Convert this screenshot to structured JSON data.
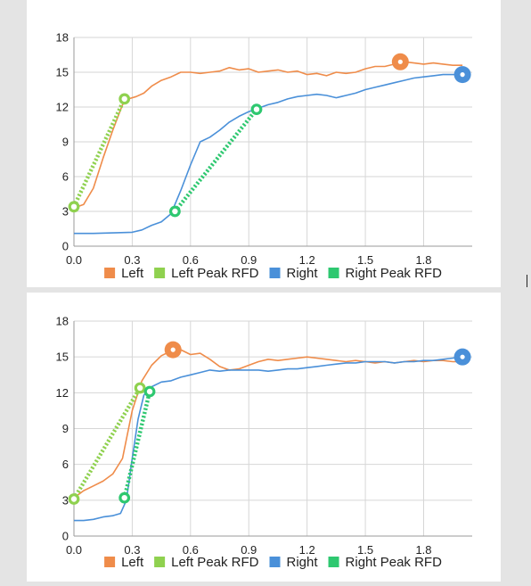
{
  "chart_data": [
    {
      "type": "line",
      "title": "",
      "xlabel": "",
      "ylabel": "",
      "xlim": [
        0,
        2.05
      ],
      "ylim": [
        0,
        18
      ],
      "x_ticks": [
        0.0,
        0.3,
        0.6,
        0.9,
        1.2,
        1.5,
        1.8
      ],
      "x_tick_labels": [
        "0.0",
        "0.3",
        "0.6",
        "0.9",
        "1.2",
        "1.5",
        "1.8"
      ],
      "y_ticks": [
        0,
        3,
        6,
        9,
        12,
        15,
        18
      ],
      "y_tick_labels": [
        "0",
        "3",
        "6",
        "9",
        "12",
        "15",
        "18"
      ],
      "grid": true,
      "legend_position": "bottom",
      "series": [
        {
          "name": "Left",
          "color": "#ef8c4a",
          "style": "solid",
          "x": [
            0.0,
            0.05,
            0.1,
            0.15,
            0.2,
            0.25,
            0.28,
            0.32,
            0.36,
            0.4,
            0.45,
            0.5,
            0.55,
            0.6,
            0.65,
            0.7,
            0.75,
            0.8,
            0.85,
            0.9,
            0.95,
            1.0,
            1.05,
            1.1,
            1.15,
            1.2,
            1.25,
            1.3,
            1.35,
            1.4,
            1.45,
            1.5,
            1.55,
            1.6,
            1.65,
            1.7,
            1.75,
            1.8,
            1.85,
            1.9,
            1.95,
            2.0
          ],
          "y": [
            3.3,
            3.6,
            5.0,
            7.6,
            10.0,
            12.2,
            12.7,
            12.9,
            13.2,
            13.8,
            14.3,
            14.6,
            15.0,
            15.0,
            14.9,
            15.0,
            15.1,
            15.4,
            15.2,
            15.3,
            15.0,
            15.1,
            15.2,
            15.0,
            15.1,
            14.8,
            14.9,
            14.7,
            15.0,
            14.9,
            15.0,
            15.3,
            15.5,
            15.5,
            15.7,
            15.9,
            15.8,
            15.7,
            15.8,
            15.7,
            15.6,
            15.6
          ]
        },
        {
          "name": "Left Peak RFD",
          "color": "#8fd14f",
          "style": "dotted",
          "x": [
            0.0,
            0.26
          ],
          "y": [
            3.4,
            12.7
          ]
        },
        {
          "name": "Right",
          "color": "#4a90d9",
          "style": "solid",
          "x": [
            0.0,
            0.1,
            0.2,
            0.3,
            0.35,
            0.4,
            0.45,
            0.5,
            0.55,
            0.6,
            0.65,
            0.7,
            0.75,
            0.8,
            0.85,
            0.9,
            0.95,
            1.0,
            1.05,
            1.1,
            1.15,
            1.2,
            1.25,
            1.3,
            1.35,
            1.4,
            1.45,
            1.5,
            1.55,
            1.6,
            1.65,
            1.7,
            1.75,
            1.8,
            1.85,
            1.9,
            1.95,
            2.0
          ],
          "y": [
            1.1,
            1.1,
            1.15,
            1.2,
            1.4,
            1.8,
            2.1,
            2.8,
            4.8,
            7.0,
            9.0,
            9.4,
            10.0,
            10.7,
            11.2,
            11.6,
            11.9,
            12.2,
            12.4,
            12.7,
            12.9,
            13.0,
            13.1,
            13.0,
            12.8,
            13.0,
            13.2,
            13.5,
            13.7,
            13.9,
            14.1,
            14.3,
            14.5,
            14.6,
            14.7,
            14.8,
            14.8,
            14.8
          ]
        },
        {
          "name": "Right Peak RFD",
          "color": "#2ec870",
          "style": "dotted",
          "x": [
            0.52,
            0.94
          ],
          "y": [
            3.0,
            11.8
          ]
        }
      ],
      "markers": [
        {
          "series": "Left",
          "x": 1.68,
          "y": 15.9,
          "color": "#ef8c4a",
          "size": "large"
        },
        {
          "series": "Right",
          "x": 2.0,
          "y": 14.8,
          "color": "#4a90d9",
          "size": "large"
        },
        {
          "series": "Left Peak RFD",
          "x": 0.0,
          "y": 3.4,
          "color": "#8fd14f",
          "size": "small"
        },
        {
          "series": "Left Peak RFD",
          "x": 0.26,
          "y": 12.7,
          "color": "#8fd14f",
          "size": "small"
        },
        {
          "series": "Right Peak RFD",
          "x": 0.52,
          "y": 3.0,
          "color": "#2ec870",
          "size": "small"
        },
        {
          "series": "Right Peak RFD",
          "x": 0.94,
          "y": 11.8,
          "color": "#2ec870",
          "size": "small"
        }
      ]
    },
    {
      "type": "line",
      "title": "",
      "xlabel": "",
      "ylabel": "",
      "xlim": [
        0,
        2.05
      ],
      "ylim": [
        0,
        18
      ],
      "x_ticks": [
        0.0,
        0.3,
        0.6,
        0.9,
        1.2,
        1.5,
        1.8
      ],
      "x_tick_labels": [
        "0.0",
        "0.3",
        "0.6",
        "0.9",
        "1.2",
        "1.5",
        "1.8"
      ],
      "y_ticks": [
        0,
        3,
        6,
        9,
        12,
        15,
        18
      ],
      "y_tick_labels": [
        "0",
        "3",
        "6",
        "9",
        "12",
        "15",
        "18"
      ],
      "grid": true,
      "legend_position": "bottom",
      "series": [
        {
          "name": "Left",
          "color": "#ef8c4a",
          "style": "solid",
          "x": [
            0.0,
            0.05,
            0.1,
            0.15,
            0.2,
            0.25,
            0.3,
            0.35,
            0.4,
            0.45,
            0.5,
            0.55,
            0.6,
            0.65,
            0.7,
            0.75,
            0.8,
            0.85,
            0.9,
            0.95,
            1.0,
            1.05,
            1.1,
            1.15,
            1.2,
            1.25,
            1.3,
            1.35,
            1.4,
            1.45,
            1.5,
            1.55,
            1.6,
            1.65,
            1.7,
            1.75,
            1.8,
            1.85,
            1.9,
            1.95,
            2.0
          ],
          "y": [
            3.2,
            3.8,
            4.2,
            4.6,
            5.2,
            6.5,
            10.5,
            13.0,
            14.3,
            15.1,
            15.5,
            15.6,
            15.2,
            15.3,
            14.8,
            14.2,
            13.9,
            14.0,
            14.3,
            14.6,
            14.8,
            14.7,
            14.8,
            14.9,
            15.0,
            14.9,
            14.8,
            14.7,
            14.6,
            14.7,
            14.6,
            14.5,
            14.6,
            14.5,
            14.6,
            14.7,
            14.6,
            14.7,
            14.7,
            14.6,
            14.6
          ]
        },
        {
          "name": "Left Peak RFD",
          "color": "#8fd14f",
          "style": "dotted",
          "x": [
            0.0,
            0.34
          ],
          "y": [
            3.1,
            12.4
          ]
        },
        {
          "name": "Right",
          "color": "#4a90d9",
          "style": "solid",
          "x": [
            0.0,
            0.05,
            0.1,
            0.15,
            0.2,
            0.24,
            0.27,
            0.3,
            0.33,
            0.36,
            0.4,
            0.45,
            0.5,
            0.55,
            0.6,
            0.65,
            0.7,
            0.75,
            0.8,
            0.85,
            0.9,
            0.95,
            1.0,
            1.05,
            1.1,
            1.15,
            1.2,
            1.25,
            1.3,
            1.35,
            1.4,
            1.45,
            1.5,
            1.55,
            1.6,
            1.65,
            1.7,
            1.75,
            1.8,
            1.85,
            1.9,
            1.95,
            2.0
          ],
          "y": [
            1.3,
            1.3,
            1.4,
            1.6,
            1.7,
            1.9,
            3.0,
            6.5,
            9.8,
            11.8,
            12.5,
            12.9,
            13.0,
            13.3,
            13.5,
            13.7,
            13.9,
            13.8,
            13.9,
            13.9,
            13.9,
            13.9,
            13.8,
            13.9,
            14.0,
            14.0,
            14.1,
            14.2,
            14.3,
            14.4,
            14.5,
            14.5,
            14.6,
            14.6,
            14.6,
            14.5,
            14.6,
            14.6,
            14.7,
            14.7,
            14.8,
            14.9,
            15.0
          ]
        },
        {
          "name": "Right Peak RFD",
          "color": "#2ec870",
          "style": "dotted",
          "x": [
            0.26,
            0.39
          ],
          "y": [
            3.2,
            12.1
          ]
        }
      ],
      "markers": [
        {
          "series": "Left",
          "x": 0.51,
          "y": 15.6,
          "color": "#ef8c4a",
          "size": "large"
        },
        {
          "series": "Right",
          "x": 2.0,
          "y": 15.0,
          "color": "#4a90d9",
          "size": "large"
        },
        {
          "series": "Left Peak RFD",
          "x": 0.0,
          "y": 3.1,
          "color": "#8fd14f",
          "size": "small"
        },
        {
          "series": "Left Peak RFD",
          "x": 0.34,
          "y": 12.4,
          "color": "#8fd14f",
          "size": "small"
        },
        {
          "series": "Right Peak RFD",
          "x": 0.26,
          "y": 3.2,
          "color": "#2ec870",
          "size": "small"
        },
        {
          "series": "Right Peak RFD",
          "x": 0.39,
          "y": 12.1,
          "color": "#2ec870",
          "size": "small"
        }
      ]
    }
  ]
}
